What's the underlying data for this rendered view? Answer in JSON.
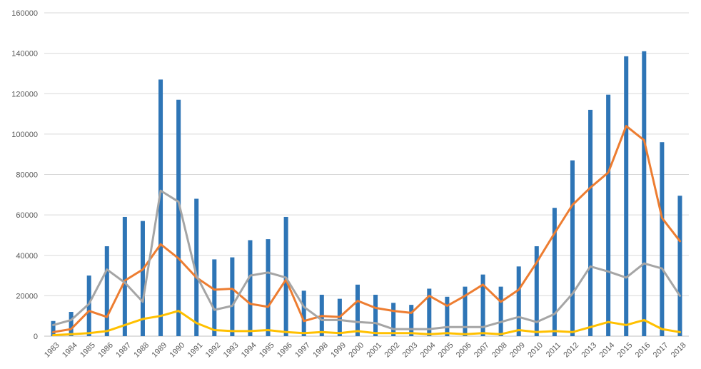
{
  "chart_data": {
    "type": "bar",
    "title": "",
    "xlabel": "",
    "ylabel": "",
    "ylim": [
      0,
      160000
    ],
    "yticks": [
      "0",
      "20000",
      "40000",
      "60000",
      "80000",
      "100000",
      "120000",
      "140000",
      "160000"
    ],
    "grid": true,
    "legend": "none",
    "categories": [
      "1983",
      "1984",
      "1985",
      "1986",
      "1987",
      "1988",
      "1989",
      "1990",
      "1991",
      "1992",
      "1993",
      "1994",
      "1995",
      "1996",
      "1997",
      "1998",
      "1999",
      "2000",
      "2001",
      "2002",
      "2003",
      "2004",
      "2005",
      "2006",
      "2007",
      "2008",
      "2009",
      "2010",
      "2011",
      "2012",
      "2013",
      "2014",
      "2015",
      "2016",
      "2017",
      "2018"
    ],
    "series": [
      {
        "type": "bar",
        "color": "#2e75b6",
        "values": [
          7500,
          12000,
          30000,
          44500,
          59000,
          57000,
          127000,
          117000,
          68000,
          38000,
          39000,
          47500,
          48000,
          59000,
          22500,
          20500,
          18500,
          25500,
          20500,
          16500,
          15500,
          23500,
          19500,
          24500,
          30500,
          24500,
          34500,
          44500,
          63500,
          87000,
          112000,
          119500,
          138500,
          141000,
          96000,
          69500
        ]
      },
      {
        "type": "line",
        "color": "#ed7d31",
        "values": [
          2000,
          3500,
          12500,
          9500,
          27500,
          33000,
          45500,
          38500,
          29000,
          23000,
          23500,
          16000,
          14500,
          28000,
          7500,
          10000,
          9500,
          17500,
          14000,
          12500,
          11500,
          20000,
          15000,
          20000,
          25500,
          17000,
          23000,
          36500,
          51000,
          65000,
          73500,
          81000,
          104000,
          97000,
          58500,
          47000
        ]
      },
      {
        "type": "line",
        "color": "#a5a5a5",
        "values": [
          5500,
          8000,
          16000,
          33000,
          26500,
          17000,
          72000,
          66500,
          30000,
          13000,
          15000,
          30000,
          31500,
          29000,
          14500,
          8000,
          8000,
          7000,
          6500,
          3500,
          3500,
          3500,
          4500,
          4500,
          4500,
          7000,
          9500,
          7000,
          11000,
          21000,
          34500,
          32000,
          29000,
          36000,
          33500,
          20000
        ]
      },
      {
        "type": "line",
        "color": "#ffc000",
        "values": [
          500,
          1000,
          1500,
          2500,
          5500,
          8500,
          10000,
          12500,
          6500,
          3000,
          2500,
          2500,
          3000,
          2000,
          1500,
          2000,
          1500,
          2500,
          1500,
          1500,
          1500,
          1000,
          1500,
          1000,
          1500,
          1000,
          3000,
          2000,
          2500,
          2000,
          4500,
          7000,
          5500,
          8000,
          3500,
          2000
        ]
      }
    ]
  }
}
